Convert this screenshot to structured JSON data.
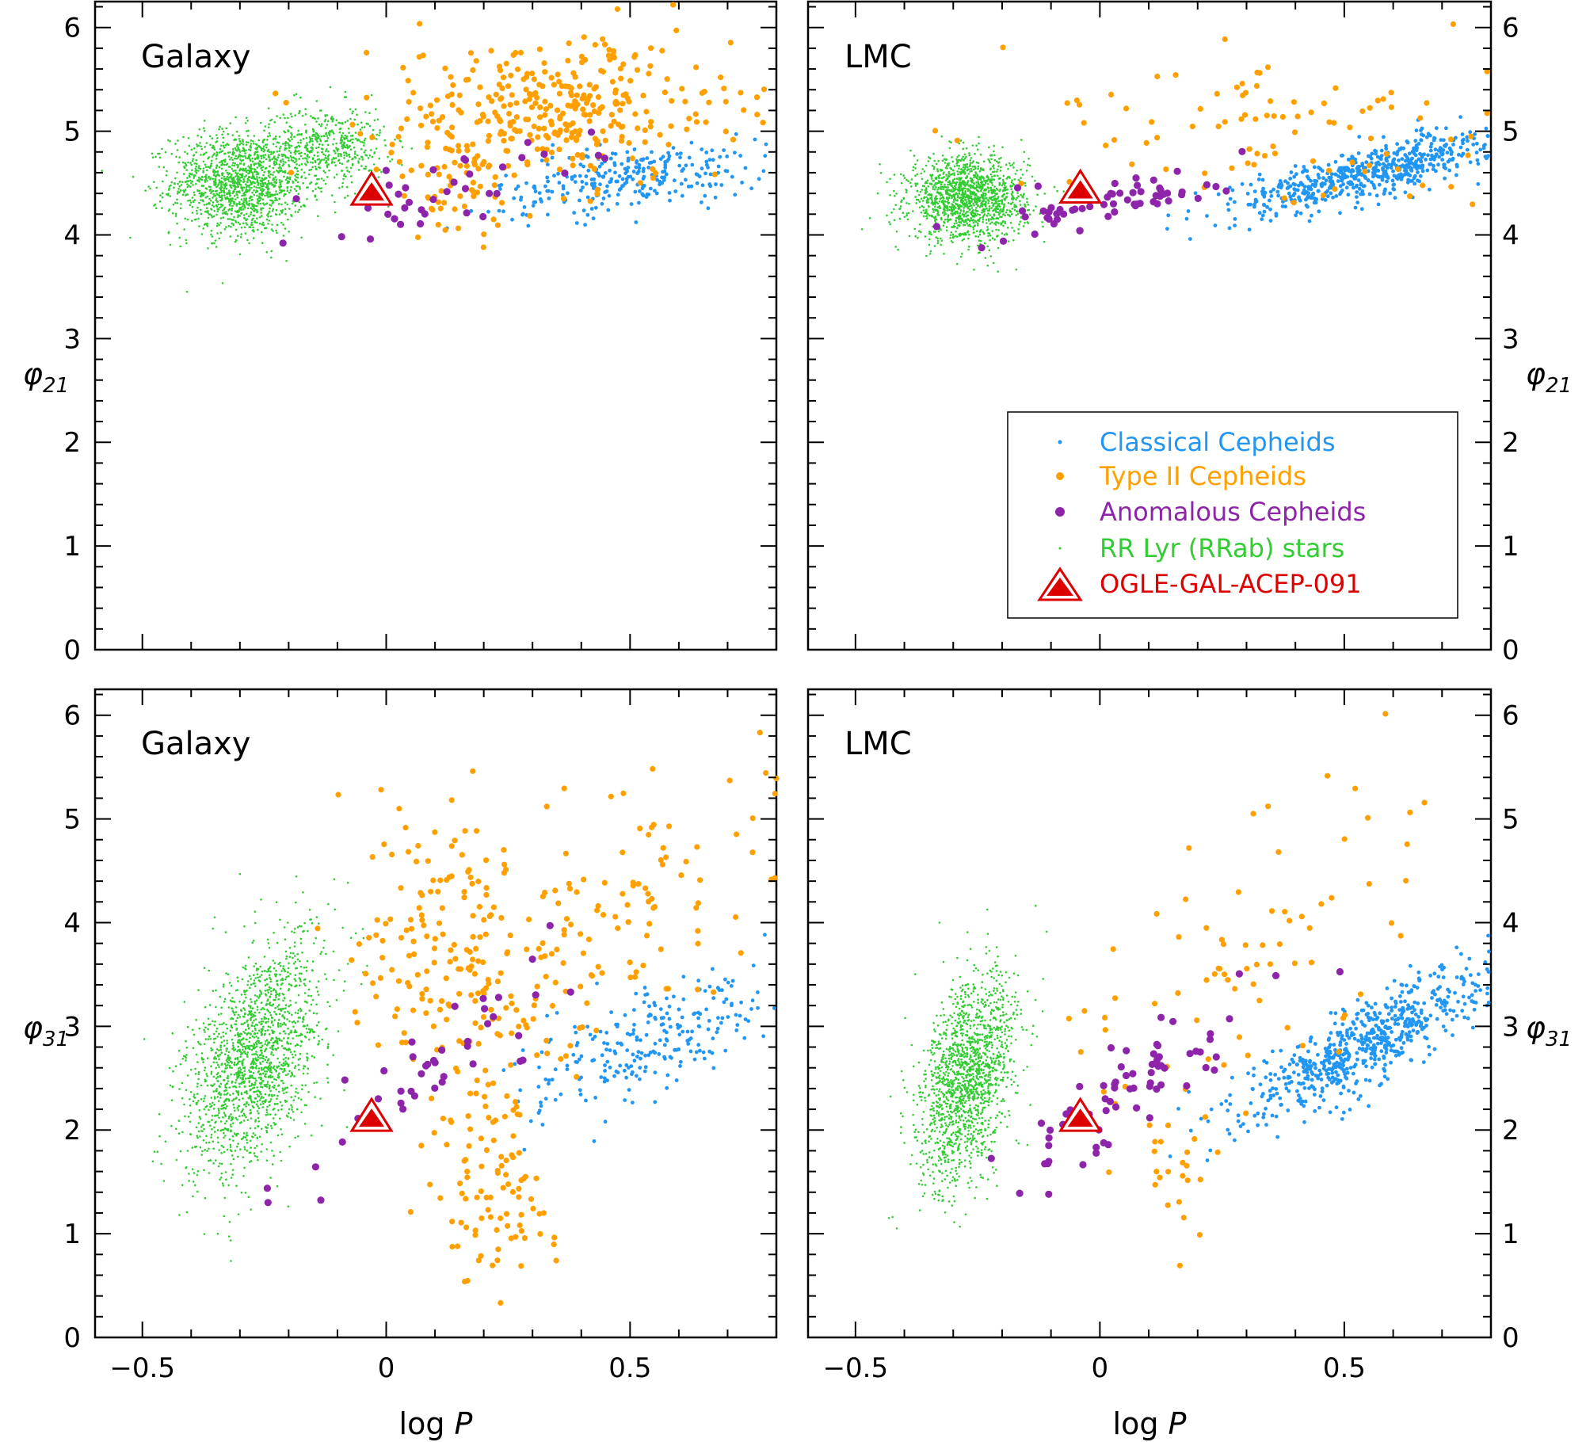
{
  "chart_data": {
    "type": "scatter",
    "title": "",
    "panels": [
      {
        "id": "galaxy-phi21",
        "label": "Galaxy",
        "ylabel_main": "φ",
        "ylabel_sub": "21",
        "xlabel": "",
        "ylim": [
          0,
          6.2
        ],
        "xlim": [
          -0.6,
          0.8
        ],
        "groups": {
          "green": [
            {
              "x": -0.3,
              "y": 4.5,
              "sx": 0.07,
              "sy": 0.25,
              "n": 1400
            },
            {
              "x": -0.12,
              "y": 4.85,
              "sx": 0.06,
              "sy": 0.2,
              "n": 500
            }
          ],
          "orange": [
            {
              "x": 0.35,
              "y": 5.2,
              "sx": 0.18,
              "sy": 0.35,
              "n": 340
            },
            {
              "x": 0.15,
              "y": 4.5,
              "sx": 0.08,
              "sy": 0.3,
              "n": 60
            }
          ],
          "blue": [
            {
              "x": 0.5,
              "y": 4.55,
              "sx": 0.14,
              "sy": 0.15,
              "n": 280,
              "slope": 0.6
            }
          ],
          "purple": [
            {
              "x": 0.12,
              "y": 4.45,
              "sx": 0.15,
              "sy": 0.15,
              "n": 38,
              "slope": 1.2
            }
          ]
        },
        "marker": {
          "x": -0.03,
          "y": 4.4
        }
      },
      {
        "id": "lmc-phi21",
        "label": "LMC",
        "ylabel_main": "φ",
        "ylabel_sub": "21",
        "xlabel": "",
        "ylim": [
          0,
          6.2
        ],
        "xlim": [
          -0.6,
          0.8
        ],
        "groups": {
          "green": [
            {
              "x": -0.27,
              "y": 4.35,
              "sx": 0.06,
              "sy": 0.2,
              "n": 1500
            }
          ],
          "orange": [
            {
              "x": 0.35,
              "y": 5.0,
              "sx": 0.22,
              "sy": 0.4,
              "n": 90
            }
          ],
          "blue": [
            {
              "x": 0.55,
              "y": 4.6,
              "sx": 0.14,
              "sy": 0.12,
              "n": 600,
              "slope": 1.1
            }
          ],
          "purple": [
            {
              "x": 0.05,
              "y": 4.35,
              "sx": 0.12,
              "sy": 0.12,
              "n": 60,
              "slope": 0.8
            }
          ]
        },
        "marker": {
          "x": -0.04,
          "y": 4.42
        }
      },
      {
        "id": "galaxy-phi31",
        "label": "Galaxy",
        "ylabel_main": "φ",
        "ylabel_sub": "31",
        "xlabel": "log P",
        "ylim": [
          0,
          6.2
        ],
        "xlim": [
          -0.6,
          0.8
        ],
        "groups": {
          "green": [
            {
              "x": -0.27,
              "y": 2.7,
              "sx": 0.07,
              "sy": 0.5,
              "n": 1700,
              "slope": 4.0
            }
          ],
          "orange": [
            {
              "x": 0.12,
              "y": 3.9,
              "sx": 0.08,
              "sy": 0.7,
              "n": 150
            },
            {
              "x": 0.45,
              "y": 4.0,
              "sx": 0.18,
              "sy": 0.6,
              "n": 140,
              "slope": 3.0
            },
            {
              "x": 0.22,
              "y": 1.5,
              "sx": 0.06,
              "sy": 0.6,
              "n": 100
            }
          ],
          "blue": [
            {
              "x": 0.55,
              "y": 2.85,
              "sx": 0.14,
              "sy": 0.25,
              "n": 260,
              "slope": 1.5
            }
          ],
          "purple": [
            {
              "x": 0.1,
              "y": 2.6,
              "sx": 0.15,
              "sy": 0.25,
              "n": 42,
              "slope": 3.5
            }
          ]
        },
        "marker": {
          "x": -0.03,
          "y": 2.1
        }
      },
      {
        "id": "lmc-phi31",
        "label": "LMC",
        "ylabel_main": "φ",
        "ylabel_sub": "31",
        "xlabel": "log P",
        "ylim": [
          0,
          6.2
        ],
        "xlim": [
          -0.6,
          0.8
        ],
        "groups": {
          "green": [
            {
              "x": -0.27,
              "y": 2.5,
              "sx": 0.05,
              "sy": 0.45,
              "n": 1600,
              "slope": 4.0
            }
          ],
          "orange": [
            {
              "x": 0.3,
              "y": 3.6,
              "sx": 0.2,
              "sy": 0.9,
              "n": 80,
              "slope": 3.0
            },
            {
              "x": 0.16,
              "y": 1.3,
              "sx": 0.03,
              "sy": 0.5,
              "n": 20
            }
          ],
          "blue": [
            {
              "x": 0.55,
              "y": 2.85,
              "sx": 0.13,
              "sy": 0.2,
              "n": 650,
              "slope": 2.4
            }
          ],
          "purple": [
            {
              "x": 0.1,
              "y": 2.5,
              "sx": 0.13,
              "sy": 0.22,
              "n": 70,
              "slope": 3.0
            }
          ]
        },
        "marker": {
          "x": -0.04,
          "y": 2.1
        }
      }
    ],
    "xticks": [
      -0.5,
      0,
      0.5
    ],
    "xtick_labels": [
      "−0.5",
      "0",
      "0.5"
    ],
    "yticks": [
      0,
      1,
      2,
      3,
      4,
      5,
      6
    ],
    "ytick_labels": [
      "0",
      "1",
      "2",
      "3",
      "4",
      "5",
      "6"
    ],
    "legend": {
      "location": "lower-right of top-right panel",
      "entries": [
        {
          "label": "Classical Cepheids",
          "color": "#2196f3",
          "marker": "small-dot"
        },
        {
          "label": "Type II Cepheids",
          "color": "#ffa000",
          "marker": "dot"
        },
        {
          "label": "Anomalous Cepheids",
          "color": "#8e24aa",
          "marker": "dot"
        },
        {
          "label": "RR Lyr (RRab) stars",
          "color": "#33cc33",
          "marker": "tiny-dot"
        },
        {
          "label": "OGLE-GAL-ACEP-091",
          "color": "#dd0000",
          "marker": "triangle"
        }
      ]
    },
    "xlabel_main": "log",
    "xlabel_italic": "P",
    "colors": {
      "blue": "#2196f3",
      "orange": "#ffa000",
      "purple": "#8e24aa",
      "green": "#33cc33",
      "red": "#dd0000"
    }
  }
}
